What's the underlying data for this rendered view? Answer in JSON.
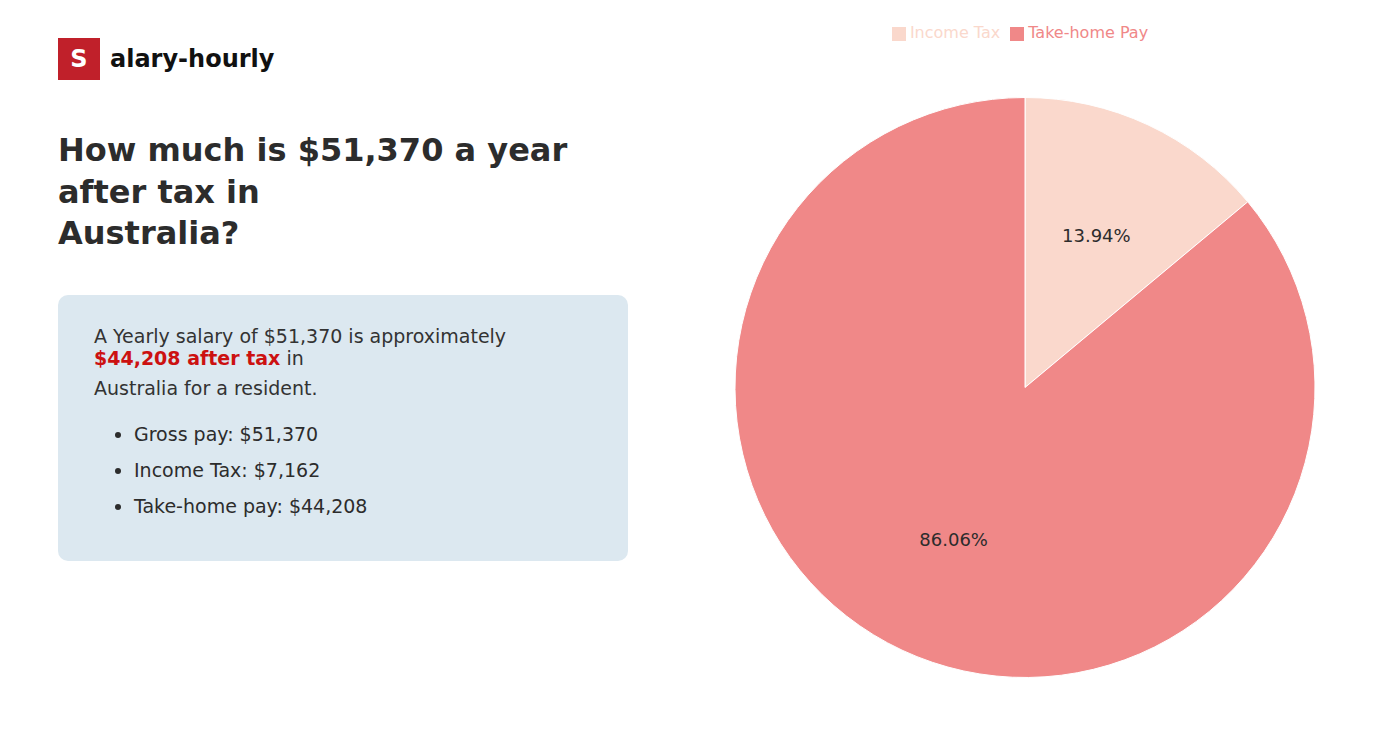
{
  "chart_data": {
    "type": "pie",
    "title": "How much is $51,370 a year after tax in\nAustralia?",
    "categories": [
      "Income Tax",
      "Take-home Pay"
    ],
    "values": [
      13.94,
      86.06
    ],
    "value_labels": [
      "13.94%",
      "86.06%"
    ],
    "colors": [
      "#fad8cc",
      "#f08888"
    ],
    "data_labels": true,
    "legend": "top",
    "annotations": [
      {
        "text": "S",
        "color": "#c0202a"
      },
      {
        "text": "alary-hourly"
      },
      {
        "text": "A Yearly salary of $51,370 is approximately "
      },
      {
        "text": "$44,208 after tax",
        "color": "#cc1111"
      },
      {
        "text": " in"
      },
      {
        "text": "Australia for a resident."
      },
      {
        "text": "Gross pay: $51,370"
      },
      {
        "text": "Income Tax: $7,162"
      },
      {
        "text": "Take-home pay: $44,208"
      }
    ]
  }
}
